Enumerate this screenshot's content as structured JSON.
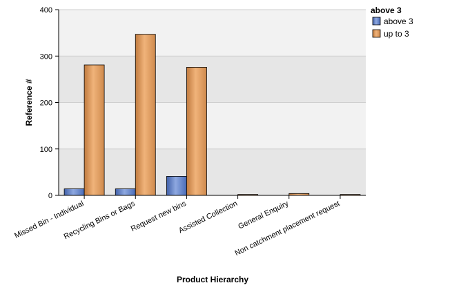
{
  "chart_data": {
    "type": "bar",
    "title": "",
    "xlabel": "Product Hierarchy",
    "ylabel": "Reference #",
    "ylim": [
      0,
      400
    ],
    "yticks": [
      0,
      100,
      200,
      300,
      400
    ],
    "categories": [
      "Missed Bin - Individual",
      "Recycling Bins or Bags",
      "Request new bins",
      "Assisted Collection",
      "General Enquiry",
      "Non catchment placement request"
    ],
    "series": [
      {
        "name": "above 3",
        "color": "#5b7fc8",
        "values": [
          14,
          14,
          41,
          0,
          0,
          0
        ]
      },
      {
        "name": "up to 3",
        "color": "#d9975a",
        "values": [
          281,
          347,
          276,
          2,
          4,
          2
        ]
      }
    ],
    "legend": {
      "title": "above 3",
      "position": "top-right"
    },
    "grid": true,
    "background_bands": [
      "#f2f2f2",
      "#e6e6e6"
    ]
  }
}
